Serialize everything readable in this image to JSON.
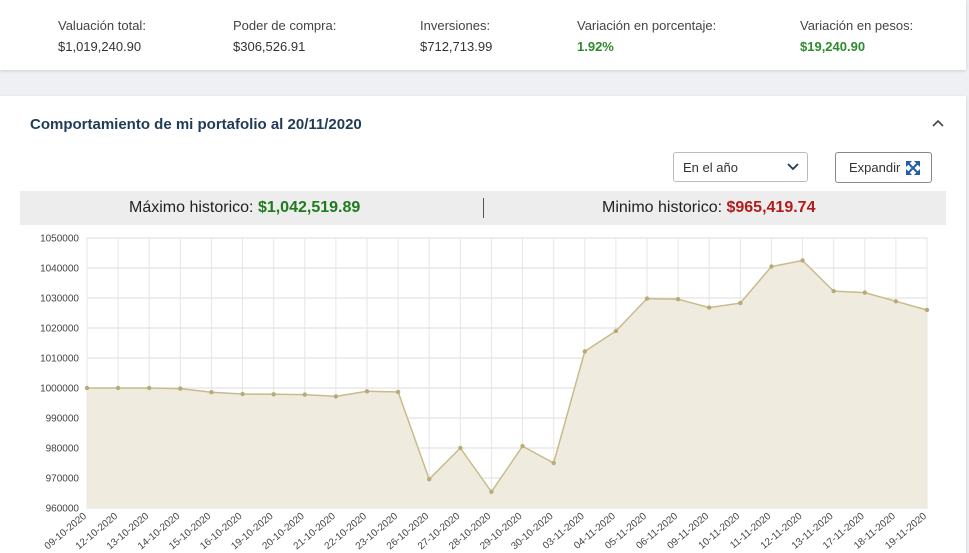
{
  "summary": [
    {
      "label": "Valuación total:",
      "value": "$1,019,240.90",
      "positive": false
    },
    {
      "label": "Poder de compra:",
      "value": "$306,526.91",
      "positive": false
    },
    {
      "label": "Inversiones:",
      "value": "$712,713.99",
      "positive": false
    },
    {
      "label": "Variación en porcentaje:",
      "value": "1.92%",
      "positive": true
    },
    {
      "label": "Variación en pesos:",
      "value": "$19,240.90",
      "positive": true
    }
  ],
  "panel": {
    "title": "Comportamiento de mi portafolio al 20/11/2020",
    "range_select": "En el año",
    "expand_label": "Expandir"
  },
  "historic": {
    "max_label": "Máximo historico:",
    "max_value": "$1,042,519.89",
    "min_label": "Minimo historico:",
    "min_value": "$965,419.74"
  },
  "colors": {
    "positive": "#2e8b2e",
    "negative": "#b21c1c",
    "line": "#c8bb8a",
    "fill": "#efecdf",
    "title": "#1f3b57"
  },
  "chart_data": {
    "type": "area",
    "x": [
      "09-10-2020",
      "12-10-2020",
      "13-10-2020",
      "14-10-2020",
      "15-10-2020",
      "16-10-2020",
      "19-10-2020",
      "20-10-2020",
      "21-10-2020",
      "22-10-2020",
      "23-10-2020",
      "26-10-2020",
      "27-10-2020",
      "28-10-2020",
      "29-10-2020",
      "30-10-2020",
      "03-11-2020",
      "04-11-2020",
      "05-11-2020",
      "06-11-2020",
      "09-11-2020",
      "10-11-2020",
      "11-11-2020",
      "12-11-2020",
      "13-11-2020",
      "17-11-2020",
      "18-11-2020",
      "19-11-2020"
    ],
    "values": [
      1000000,
      1000000,
      1000000,
      999800,
      998600,
      998000,
      997900,
      997800,
      997200,
      998900,
      998700,
      969600,
      980000,
      965400,
      980600,
      975000,
      1012200,
      1019000,
      1029800,
      1029600,
      1026800,
      1028300,
      1040500,
      1042500,
      1032300,
      1031800,
      1028900,
      1026000
    ],
    "ylim": [
      960000,
      1050000
    ],
    "yticks": [
      960000,
      970000,
      980000,
      990000,
      1000000,
      1010000,
      1020000,
      1030000,
      1040000,
      1050000
    ],
    "grid": true,
    "legend": "none"
  }
}
